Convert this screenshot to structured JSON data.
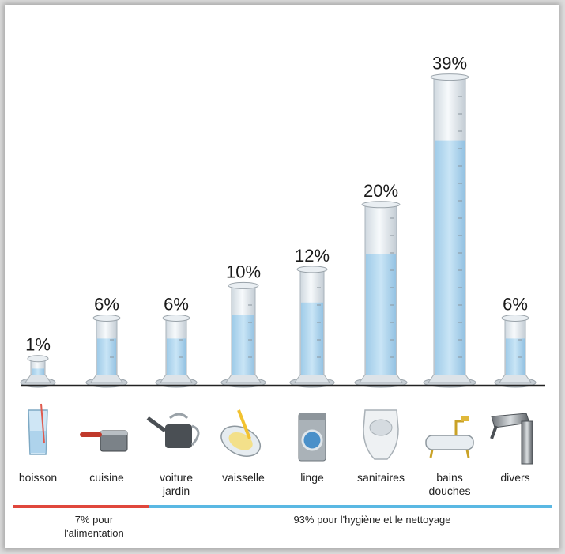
{
  "chart_data": {
    "type": "bar",
    "unit": "%",
    "categories": [
      {
        "label": [
          "boisson"
        ],
        "icon": "glass-icon"
      },
      {
        "label": [
          "cuisine"
        ],
        "icon": "saucepan-icon"
      },
      {
        "label": [
          "voiture",
          "jardin"
        ],
        "icon": "watering-can-icon"
      },
      {
        "label": [
          "vaisselle"
        ],
        "icon": "dish-sponge-icon"
      },
      {
        "label": [
          "linge"
        ],
        "icon": "washing-machine-icon"
      },
      {
        "label": [
          "sanitaires"
        ],
        "icon": "toilet-icon"
      },
      {
        "label": [
          "bains",
          "douches"
        ],
        "icon": "bathtub-icon"
      },
      {
        "label": [
          "divers"
        ],
        "icon": "faucet-icon"
      }
    ],
    "values": [
      1,
      6,
      6,
      10,
      12,
      20,
      39,
      6
    ],
    "value_labels": [
      "1%",
      "6%",
      "6%",
      "10%",
      "12%",
      "20%",
      "39%",
      "6%"
    ],
    "groups": [
      {
        "label": [
          "7% pour",
          "l'alimentation"
        ],
        "color": "#e0473c",
        "from_category": 0,
        "to_category": 1
      },
      {
        "label": [
          "93% pour l'hygiène et le nettoyage"
        ],
        "color": "#5ab8e3",
        "from_category": 2,
        "to_category": 7
      }
    ],
    "colors": {
      "water": "#b9dcf2",
      "cylinder": "#eaf1f6",
      "baseline": "#222222"
    }
  }
}
